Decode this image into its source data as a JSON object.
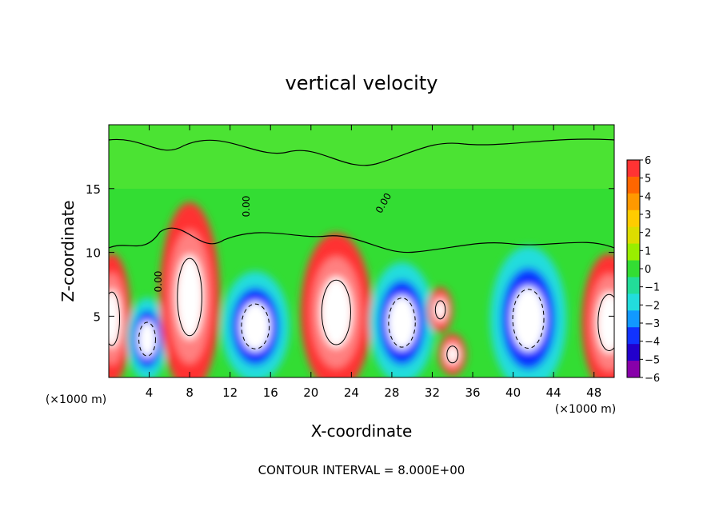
{
  "chart_data": {
    "type": "heatmap",
    "title": "vertical velocity",
    "xlabel": "X-coordinate",
    "ylabel": "Z-coordinate",
    "x_unit_note": "(×1000 m)",
    "footer": "CONTOUR INTERVAL = 8.000E+00",
    "xlim": [
      0,
      50
    ],
    "ylim": [
      0.2,
      20
    ],
    "x_ticks": [
      4,
      8,
      12,
      16,
      20,
      24,
      28,
      32,
      36,
      40,
      44,
      48
    ],
    "y_ticks": [
      5,
      10,
      15
    ],
    "colorbar": {
      "ticks": [
        6,
        5,
        4,
        3,
        2,
        1,
        0,
        -1,
        -2,
        -3,
        -4,
        -5,
        -6
      ],
      "tick_labels": [
        "6",
        "5",
        "4",
        "3",
        "2",
        "1",
        "0",
        "−1",
        "−2",
        "−3",
        "−4",
        "−5",
        "−6"
      ],
      "colors": [
        "#ff3333",
        "#ff6600",
        "#ff9900",
        "#ffcc00",
        "#dddd00",
        "#99ee00",
        "#33dd33",
        "#22dd99",
        "#22dddd",
        "#1199ff",
        "#1133ff",
        "#2200cc",
        "#8800aa"
      ]
    },
    "contour_labels": [
      "0.00",
      "0.00",
      "0.00"
    ],
    "features": [
      {
        "sign": "up",
        "x": 0.3,
        "z": 4.8,
        "rx": 1.4,
        "rz": 3.8
      },
      {
        "sign": "down",
        "x": 3.8,
        "z": 3.2,
        "rx": 1.5,
        "rz": 2.4
      },
      {
        "sign": "up",
        "x": 8.0,
        "z": 6.5,
        "rx": 2.2,
        "rz": 5.5
      },
      {
        "sign": "down",
        "x": 14.5,
        "z": 4.2,
        "rx": 2.5,
        "rz": 3.2
      },
      {
        "sign": "up",
        "x": 22.5,
        "z": 5.3,
        "rx": 2.6,
        "rz": 4.6
      },
      {
        "sign": "down",
        "x": 29.0,
        "z": 4.5,
        "rx": 2.4,
        "rz": 3.5
      },
      {
        "sign": "up",
        "x": 32.8,
        "z": 5.5,
        "rx": 0.9,
        "rz": 1.3
      },
      {
        "sign": "up",
        "x": 34.0,
        "z": 2.0,
        "rx": 1.0,
        "rz": 1.2
      },
      {
        "sign": "down",
        "x": 41.5,
        "z": 4.8,
        "rx": 2.8,
        "rz": 4.2
      },
      {
        "sign": "up",
        "x": 49.5,
        "z": 4.5,
        "rx": 2.0,
        "rz": 4.0
      }
    ]
  }
}
